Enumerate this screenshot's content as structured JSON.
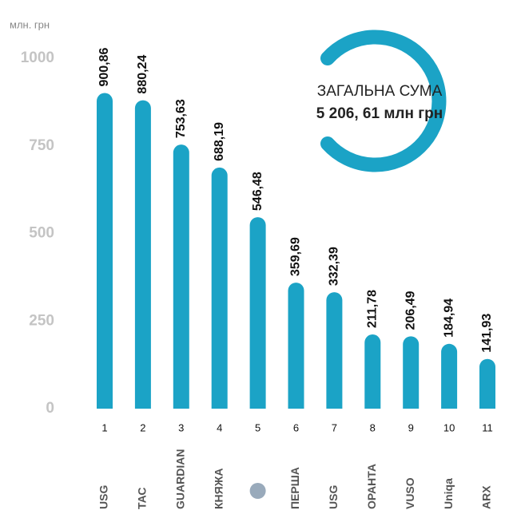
{
  "chart_data": {
    "type": "bar",
    "unit_label": "млн. грн",
    "categories": [
      "1",
      "2",
      "3",
      "4",
      "5",
      "6",
      "7",
      "8",
      "9",
      "10",
      "11"
    ],
    "logos": [
      "USG",
      "ТАС",
      "GUARDIAN",
      "КНЯЖА",
      "",
      "ПЕРША",
      "USG",
      "ОРАНТА",
      "VUSO",
      "Uniqa",
      "ARX"
    ],
    "values": [
      900.86,
      880.24,
      753.63,
      688.19,
      546.48,
      359.69,
      332.39,
      211.78,
      206.49,
      184.94,
      141.93
    ],
    "value_labels": [
      "900,86",
      "880,24",
      "753,63",
      "688,19",
      "546,48",
      "359,69",
      "332,39",
      "211,78",
      "206,49",
      "184,94",
      "141,93"
    ],
    "color": "#1ba3c6",
    "ylim": [
      0,
      1000
    ],
    "yticks": [
      0,
      250,
      500,
      750,
      1000
    ],
    "annotation": {
      "title": "ЗАГАЛЬНА СУМА",
      "text": "5 206, 61 млн грн"
    }
  }
}
